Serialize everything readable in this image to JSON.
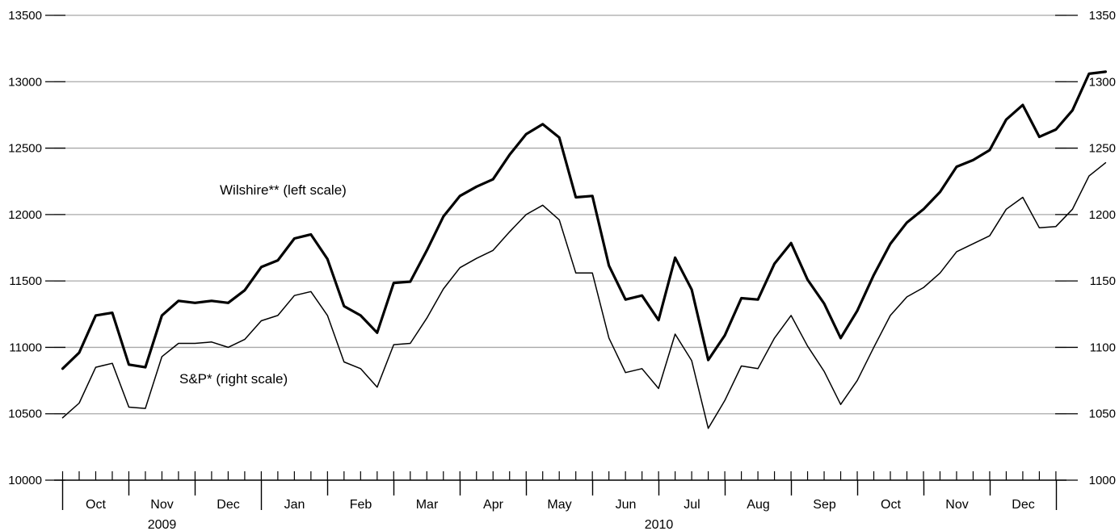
{
  "chart_data": {
    "type": "line",
    "left_axis": {
      "ylim": [
        10000,
        13500
      ],
      "ticks": [
        10000,
        10500,
        11000,
        11500,
        12000,
        12500,
        13000,
        13500
      ]
    },
    "right_axis": {
      "ylim": [
        1000,
        1350
      ],
      "ticks": [
        1000,
        1050,
        1100,
        1150,
        1200,
        1250,
        1300,
        1350
      ]
    },
    "grid": true,
    "x_axis": {
      "start_week": 0,
      "months": [
        {
          "label": "Oct",
          "weeks": 4
        },
        {
          "label": "Nov",
          "weeks": 4
        },
        {
          "label": "Dec",
          "weeks": 4
        },
        {
          "label": "Jan",
          "weeks": 4
        },
        {
          "label": "Feb",
          "weeks": 4
        },
        {
          "label": "Mar",
          "weeks": 4
        },
        {
          "label": "Apr",
          "weeks": 4
        },
        {
          "label": "May",
          "weeks": 4
        },
        {
          "label": "Jun",
          "weeks": 4
        },
        {
          "label": "Jul",
          "weeks": 4
        },
        {
          "label": "Aug",
          "weeks": 4
        },
        {
          "label": "Sep",
          "weeks": 4
        },
        {
          "label": "Oct",
          "weeks": 4
        },
        {
          "label": "Nov",
          "weeks": 4
        },
        {
          "label": "Dec",
          "weeks": 4
        }
      ],
      "years": [
        {
          "label": "2009",
          "month_start": 0,
          "month_count": 3
        },
        {
          "label": "2010",
          "month_start": 3,
          "month_count": 12
        }
      ]
    },
    "series": [
      {
        "axis": "left",
        "stroke_color": "#000000",
        "style": "thick",
        "values": [
          10840,
          10960,
          11240,
          11260,
          10870,
          10850,
          11240,
          11350,
          11335,
          11350,
          11335,
          11430,
          11605,
          11655,
          11820,
          11850,
          11665,
          11310,
          11240,
          11110,
          11485,
          11495,
          11730,
          11985,
          12140,
          12210,
          12265,
          12450,
          12605,
          12680,
          12580,
          12130,
          12140,
          11615,
          11360,
          11390,
          11205,
          11675,
          11435,
          10905,
          11090,
          11370,
          11360,
          11630,
          11785,
          11510,
          11330,
          11070,
          11275,
          11545,
          11780,
          11940,
          12040,
          12170,
          12360,
          12410,
          12485,
          12715,
          12825,
          12585,
          12640,
          12785,
          13060,
          13075
        ]
      },
      {
        "axis": "right",
        "stroke_color": "#000000",
        "style": "thin",
        "values": [
          1047,
          1058,
          1085,
          1088,
          1055,
          1054,
          1093,
          1103,
          1103,
          1104,
          1100,
          1106,
          1120,
          1124,
          1139,
          1142,
          1124,
          1089,
          1084,
          1070,
          1102,
          1103,
          1122,
          1144,
          1160,
          1167,
          1173,
          1187,
          1200,
          1207,
          1196,
          1156,
          1156,
          1107,
          1081,
          1084,
          1069,
          1110,
          1090,
          1039,
          1060,
          1086,
          1084,
          1107,
          1124,
          1101,
          1082,
          1057,
          1075,
          1100,
          1124,
          1138,
          1145,
          1156,
          1172,
          1178,
          1184,
          1204,
          1213,
          1190,
          1191,
          1204,
          1229,
          1239
        ]
      }
    ],
    "annotations": [
      {
        "text": "Wilshire** (left scale)",
        "series_index": 0
      },
      {
        "text": "S&P* (right scale)",
        "series_index": 1
      }
    ]
  }
}
